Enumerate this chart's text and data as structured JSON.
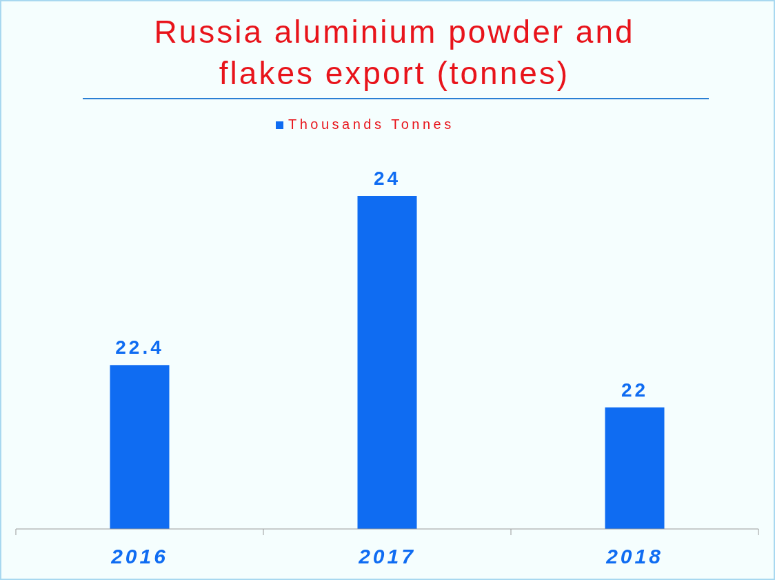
{
  "chart_data": {
    "type": "bar",
    "title": "Russia aluminium powder and flakes export (tonnes)",
    "categories": [
      "2016",
      "2017",
      "2018"
    ],
    "series": [
      {
        "name": "Thousands Tonnes",
        "color": "#0f6cf2",
        "values": [
          22.4,
          24,
          22
        ]
      }
    ],
    "ylim": [
      20.85,
      24
    ],
    "tick_labels": "x",
    "data_labels": true,
    "legend": "top",
    "grid": false
  }
}
